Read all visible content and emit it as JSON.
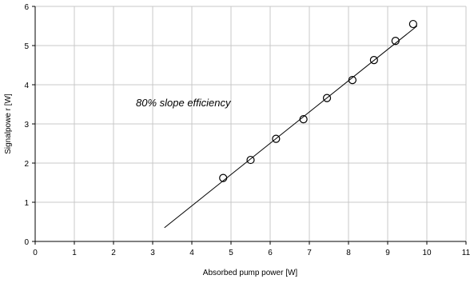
{
  "chart_data": {
    "type": "scatter",
    "title": "",
    "xlabel": "Absorbed pump power [W]",
    "ylabel": "Signalpowe r [W]",
    "xlim": [
      0,
      11
    ],
    "ylim": [
      0,
      6
    ],
    "xticks": [
      "0",
      "1",
      "2",
      "3",
      "4",
      "5",
      "6",
      "7",
      "8",
      "9",
      "10",
      "11"
    ],
    "yticks": [
      "0",
      "1",
      "2",
      "3",
      "4",
      "5",
      "6"
    ],
    "grid": true,
    "legend": "none",
    "annotation": "80% slope efficiency",
    "series": [
      {
        "marker": "open-circle",
        "x": [
          4.8,
          5.5,
          6.15,
          6.85,
          7.45,
          8.1,
          8.65,
          9.2,
          9.65
        ],
        "y": [
          1.62,
          2.08,
          2.62,
          3.12,
          3.66,
          4.12,
          4.63,
          5.12,
          5.55
        ]
      }
    ],
    "fit_line": {
      "style": "solid",
      "x": [
        3.3,
        9.75
      ],
      "y": [
        0.35,
        5.5
      ]
    },
    "colors": {
      "grid": "#c8c8c8",
      "axis": "#000000",
      "marker": "#000000",
      "line": "#000000"
    }
  }
}
